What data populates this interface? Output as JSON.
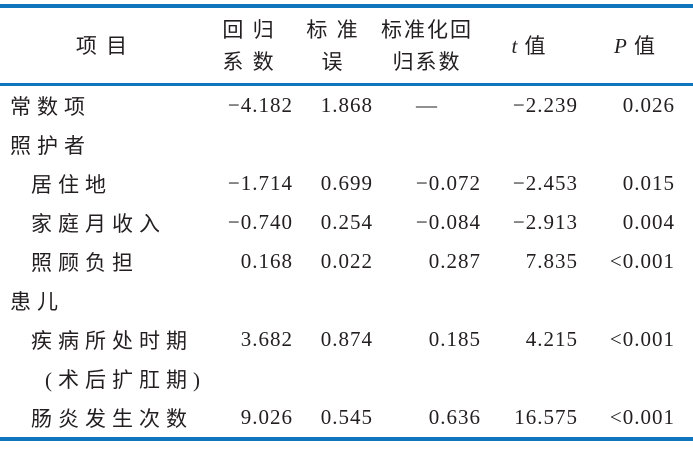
{
  "colors": {
    "rule_blue": "#0f76bd",
    "text": "#231f20",
    "background": "#ffffff"
  },
  "table": {
    "columns": [
      {
        "key": "item",
        "label_lines": [
          "项 目"
        ],
        "align": "left",
        "italic_first": false
      },
      {
        "key": "coef",
        "label_lines": [
          "回 归",
          "系 数"
        ],
        "align": "right",
        "italic_first": false
      },
      {
        "key": "se",
        "label_lines": [
          "标 准",
          "误"
        ],
        "align": "right",
        "italic_first": false
      },
      {
        "key": "std_coef",
        "label_lines": [
          "标准化回",
          "归系数"
        ],
        "align": "right",
        "italic_first": false
      },
      {
        "key": "t",
        "label_lines": [
          "t 值"
        ],
        "align": "right",
        "italic_first": true
      },
      {
        "key": "p",
        "label_lines": [
          "P 值"
        ],
        "align": "right",
        "italic_first": true
      }
    ],
    "rows": [
      {
        "item": "常数项",
        "indent": 0,
        "coef": "-4.182",
        "se": "1.868",
        "std_coef": "—",
        "t": "-2.239",
        "p": "0.026"
      },
      {
        "item": "照护者",
        "indent": 0,
        "coef": "",
        "se": "",
        "std_coef": "",
        "t": "",
        "p": ""
      },
      {
        "item": "居住地",
        "indent": 1,
        "coef": "-1.714",
        "se": "0.699",
        "std_coef": "-0.072",
        "t": "-2.453",
        "p": "0.015"
      },
      {
        "item": "家庭月收入",
        "indent": 1,
        "coef": "-0.740",
        "se": "0.254",
        "std_coef": "-0.084",
        "t": "-2.913",
        "p": "0.004"
      },
      {
        "item": "照顾负担",
        "indent": 1,
        "coef": "0.168",
        "se": "0.022",
        "std_coef": "0.287",
        "t": "7.835",
        "p": "<0.001"
      },
      {
        "item": "患儿",
        "indent": 0,
        "coef": "",
        "se": "",
        "std_coef": "",
        "t": "",
        "p": ""
      },
      {
        "item": "疾病所处时期",
        "indent": 1,
        "coef": "3.682",
        "se": "0.874",
        "std_coef": "0.185",
        "t": "4.215",
        "p": "<0.001"
      },
      {
        "item": "(术后扩肛期)",
        "indent": 2,
        "coef": "",
        "se": "",
        "std_coef": "",
        "t": "",
        "p": ""
      },
      {
        "item": "肠炎发生次数",
        "indent": 1,
        "coef": "9.026",
        "se": "0.545",
        "std_coef": "0.636",
        "t": "16.575",
        "p": "<0.001"
      }
    ]
  }
}
